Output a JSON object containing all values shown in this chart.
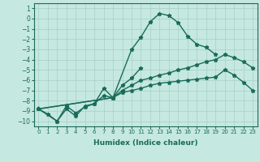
{
  "xlabel": "Humidex (Indice chaleur)",
  "xlim": [
    -0.5,
    23.5
  ],
  "ylim": [
    -10.5,
    1.5
  ],
  "xticks": [
    0,
    1,
    2,
    3,
    4,
    5,
    6,
    7,
    8,
    9,
    10,
    11,
    12,
    13,
    14,
    15,
    16,
    17,
    18,
    19,
    20,
    21,
    22,
    23
  ],
  "yticks": [
    1,
    0,
    -1,
    -2,
    -3,
    -4,
    -5,
    -6,
    -7,
    -8,
    -9,
    -10
  ],
  "bg_color": "#c5e8e0",
  "grid_color": "#a8cfc8",
  "line_color": "#1a6b5a",
  "line_width": 1.0,
  "marker_size": 3.5,
  "curves": [
    {
      "x": [
        0,
        2,
        3,
        4,
        5,
        6,
        7,
        8,
        10,
        11,
        12,
        13,
        14,
        15,
        16,
        17,
        18,
        19
      ],
      "y": [
        -8.8,
        -10.0,
        -8.5,
        -9.2,
        -8.6,
        -8.3,
        -6.8,
        -7.7,
        -3.0,
        -1.8,
        -0.3,
        0.5,
        0.3,
        -0.4,
        -1.7,
        -2.5,
        -2.8,
        -3.5
      ]
    },
    {
      "x": [
        0,
        1,
        2,
        3,
        4,
        5,
        6,
        7,
        8,
        9,
        10,
        11
      ],
      "y": [
        -8.8,
        -9.3,
        -10.0,
        -8.8,
        -9.5,
        -8.5,
        -8.3,
        -7.5,
        -7.7,
        -6.5,
        -5.8,
        -4.8
      ]
    },
    {
      "x": [
        0,
        8,
        9,
        10,
        11,
        12,
        13,
        14,
        15,
        16,
        17,
        18,
        19,
        20,
        21,
        22,
        23
      ],
      "y": [
        -8.8,
        -7.7,
        -7.0,
        -6.5,
        -6.0,
        -5.8,
        -5.5,
        -5.3,
        -5.0,
        -4.8,
        -4.5,
        -4.2,
        -4.0,
        -3.5,
        -3.8,
        -4.2,
        -4.8
      ]
    },
    {
      "x": [
        0,
        8,
        9,
        10,
        11,
        12,
        13,
        14,
        15,
        16,
        17,
        18,
        19,
        20,
        21,
        22,
        23
      ],
      "y": [
        -8.8,
        -7.7,
        -7.2,
        -7.0,
        -6.8,
        -6.5,
        -6.3,
        -6.2,
        -6.1,
        -6.0,
        -5.9,
        -5.8,
        -5.7,
        -5.0,
        -5.5,
        -6.2,
        -7.0
      ]
    }
  ]
}
